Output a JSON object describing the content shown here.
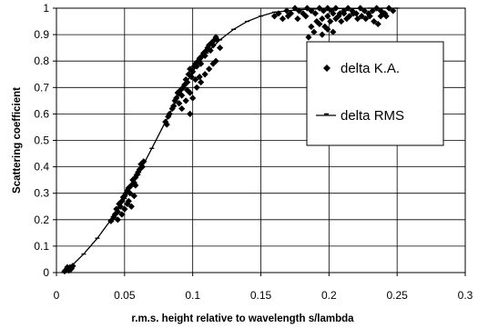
{
  "chart_data": {
    "type": "scatter",
    "title": "",
    "xlabel": "r.m.s. height relative to wavelength s/lambda",
    "ylabel": "Scattering coefficient",
    "xlim": [
      0,
      0.3
    ],
    "ylim": [
      0,
      1
    ],
    "x_ticks": [
      "0",
      "0.05",
      "0.1",
      "0.15",
      "0.2",
      "0.25",
      "0.3"
    ],
    "y_ticks": [
      "0",
      "0.1",
      "0.2",
      "0.3",
      "0.4",
      "0.5",
      "0.6",
      "0.7",
      "0.8",
      "0.9",
      "1"
    ],
    "grid": true,
    "legend_position": "right",
    "series": [
      {
        "name": "delta K.A.",
        "marker": "diamond",
        "color": "#000000",
        "points": [
          [
            0.006,
            0.005
          ],
          [
            0.007,
            0.01
          ],
          [
            0.008,
            0.015
          ],
          [
            0.009,
            0.008
          ],
          [
            0.01,
            0.02
          ],
          [
            0.011,
            0.015
          ],
          [
            0.012,
            0.025
          ],
          [
            0.008,
            0.02
          ],
          [
            0.01,
            0.01
          ],
          [
            0.04,
            0.195
          ],
          [
            0.042,
            0.21
          ],
          [
            0.043,
            0.22
          ],
          [
            0.044,
            0.24
          ],
          [
            0.045,
            0.23
          ],
          [
            0.046,
            0.26
          ],
          [
            0.047,
            0.25
          ],
          [
            0.048,
            0.27
          ],
          [
            0.049,
            0.285
          ],
          [
            0.05,
            0.29
          ],
          [
            0.05,
            0.24
          ],
          [
            0.051,
            0.3
          ],
          [
            0.052,
            0.31
          ],
          [
            0.052,
            0.26
          ],
          [
            0.053,
            0.32
          ],
          [
            0.054,
            0.3
          ],
          [
            0.055,
            0.33
          ],
          [
            0.055,
            0.25
          ],
          [
            0.056,
            0.35
          ],
          [
            0.057,
            0.34
          ],
          [
            0.057,
            0.29
          ],
          [
            0.058,
            0.36
          ],
          [
            0.059,
            0.37
          ],
          [
            0.06,
            0.38
          ],
          [
            0.061,
            0.39
          ],
          [
            0.062,
            0.41
          ],
          [
            0.063,
            0.4
          ],
          [
            0.064,
            0.42
          ],
          [
            0.045,
            0.2
          ],
          [
            0.048,
            0.22
          ],
          [
            0.053,
            0.27
          ],
          [
            0.058,
            0.33
          ],
          [
            0.08,
            0.57
          ],
          [
            0.081,
            0.56
          ],
          [
            0.082,
            0.59
          ],
          [
            0.083,
            0.6
          ],
          [
            0.085,
            0.62
          ],
          [
            0.086,
            0.63
          ],
          [
            0.087,
            0.65
          ],
          [
            0.088,
            0.66
          ],
          [
            0.089,
            0.68
          ],
          [
            0.09,
            0.64
          ],
          [
            0.091,
            0.69
          ],
          [
            0.092,
            0.67
          ],
          [
            0.093,
            0.7
          ],
          [
            0.094,
            0.71
          ],
          [
            0.095,
            0.73
          ],
          [
            0.096,
            0.72
          ],
          [
            0.097,
            0.75
          ],
          [
            0.098,
            0.77
          ],
          [
            0.099,
            0.74
          ],
          [
            0.1,
            0.76
          ],
          [
            0.101,
            0.78
          ],
          [
            0.102,
            0.79
          ],
          [
            0.103,
            0.78
          ],
          [
            0.104,
            0.8
          ],
          [
            0.105,
            0.81
          ],
          [
            0.106,
            0.79
          ],
          [
            0.107,
            0.82
          ],
          [
            0.108,
            0.83
          ],
          [
            0.109,
            0.82
          ],
          [
            0.11,
            0.84
          ],
          [
            0.111,
            0.85
          ],
          [
            0.112,
            0.86
          ],
          [
            0.113,
            0.84
          ],
          [
            0.114,
            0.87
          ],
          [
            0.115,
            0.86
          ],
          [
            0.116,
            0.88
          ],
          [
            0.117,
            0.89
          ],
          [
            0.118,
            0.88
          ],
          [
            0.12,
            0.85
          ],
          [
            0.092,
            0.62
          ],
          [
            0.095,
            0.65
          ],
          [
            0.098,
            0.68
          ],
          [
            0.1,
            0.66
          ],
          [
            0.103,
            0.7
          ],
          [
            0.106,
            0.72
          ],
          [
            0.109,
            0.75
          ],
          [
            0.112,
            0.77
          ],
          [
            0.115,
            0.79
          ],
          [
            0.117,
            0.8
          ],
          [
            0.098,
            0.6
          ],
          [
            0.102,
            0.73
          ],
          [
            0.096,
            0.69
          ],
          [
            0.105,
            0.74
          ],
          [
            0.16,
            0.97
          ],
          [
            0.163,
            0.98
          ],
          [
            0.166,
            0.96
          ],
          [
            0.169,
            0.99
          ],
          [
            0.172,
            0.98
          ],
          [
            0.175,
            1.0
          ],
          [
            0.178,
            0.99
          ],
          [
            0.181,
            0.98
          ],
          [
            0.184,
            1.0
          ],
          [
            0.187,
            0.99
          ],
          [
            0.19,
            0.98
          ],
          [
            0.193,
            1.0
          ],
          [
            0.196,
            0.99
          ],
          [
            0.199,
            1.0
          ],
          [
            0.202,
            0.99
          ],
          [
            0.205,
            1.0
          ],
          [
            0.208,
            0.98
          ],
          [
            0.211,
            0.99
          ],
          [
            0.214,
            1.0
          ],
          [
            0.217,
            0.99
          ],
          [
            0.22,
            0.98
          ],
          [
            0.223,
            1.0
          ],
          [
            0.226,
            0.99
          ],
          [
            0.229,
            0.98
          ],
          [
            0.232,
            0.99
          ],
          [
            0.235,
            1.0
          ],
          [
            0.238,
            0.99
          ],
          [
            0.241,
            0.98
          ],
          [
            0.244,
            1.0
          ],
          [
            0.247,
            0.99
          ],
          [
            0.185,
            0.89
          ],
          [
            0.187,
            0.93
          ],
          [
            0.189,
            0.91
          ],
          [
            0.191,
            0.95
          ],
          [
            0.193,
            0.94
          ],
          [
            0.195,
            0.96
          ],
          [
            0.197,
            0.93
          ],
          [
            0.199,
            0.97
          ],
          [
            0.201,
            0.95
          ],
          [
            0.203,
            0.98
          ],
          [
            0.205,
            0.96
          ],
          [
            0.207,
            0.97
          ],
          [
            0.209,
            0.95
          ],
          [
            0.211,
            0.98
          ],
          [
            0.213,
            0.96
          ],
          [
            0.215,
            0.97
          ],
          [
            0.218,
            0.98
          ],
          [
            0.221,
            0.96
          ],
          [
            0.224,
            0.97
          ],
          [
            0.227,
            0.96
          ],
          [
            0.23,
            0.97
          ],
          [
            0.233,
            0.95
          ],
          [
            0.236,
            0.94
          ],
          [
            0.238,
            0.97
          ],
          [
            0.24,
            0.98
          ],
          [
            0.242,
            0.97
          ],
          [
            0.195,
            0.9
          ],
          [
            0.199,
            0.92
          ],
          [
            0.203,
            0.91
          ],
          [
            0.17,
            0.97
          ],
          [
            0.177,
            0.96
          ],
          [
            0.183,
            0.97
          ]
        ]
      },
      {
        "name": "delta RMS",
        "marker": "dash",
        "color": "#000000",
        "points": [
          [
            0.005,
            0.0
          ],
          [
            0.01,
            0.02
          ],
          [
            0.02,
            0.07
          ],
          [
            0.03,
            0.13
          ],
          [
            0.04,
            0.2
          ],
          [
            0.05,
            0.28
          ],
          [
            0.06,
            0.37
          ],
          [
            0.07,
            0.47
          ],
          [
            0.08,
            0.57
          ],
          [
            0.09,
            0.67
          ],
          [
            0.1,
            0.76
          ],
          [
            0.11,
            0.83
          ],
          [
            0.12,
            0.88
          ],
          [
            0.13,
            0.92
          ],
          [
            0.14,
            0.95
          ],
          [
            0.15,
            0.97
          ],
          [
            0.16,
            0.985
          ],
          [
            0.17,
            0.99
          ],
          [
            0.18,
            0.995
          ],
          [
            0.19,
            0.997
          ],
          [
            0.2,
            0.998
          ],
          [
            0.21,
            0.999
          ],
          [
            0.22,
            0.999
          ],
          [
            0.23,
            1.0
          ],
          [
            0.24,
            1.0
          ],
          [
            0.25,
            1.0
          ]
        ]
      }
    ]
  }
}
